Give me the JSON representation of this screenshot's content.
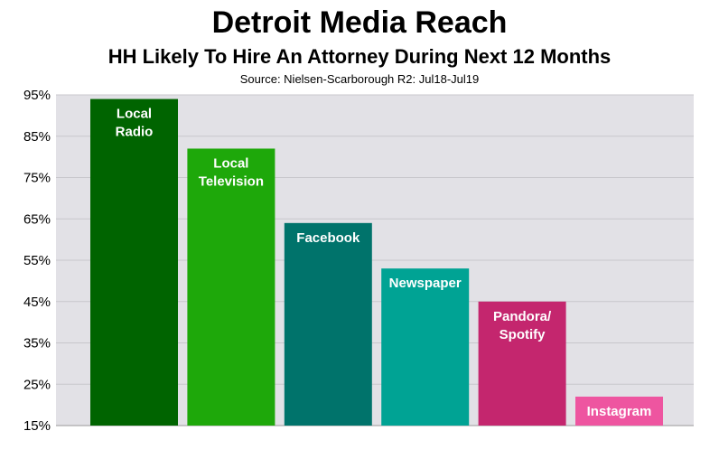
{
  "chart_data": {
    "type": "bar",
    "title": "Detroit Media Reach",
    "subtitle": "HH Likely To Hire An Attorney During Next 12 Months",
    "source": "Source: Nielsen-Scarborough R2: Jul18-Jul19",
    "xlabel": "",
    "ylabel": "",
    "ylim": [
      15,
      95
    ],
    "yticks": [
      "95%",
      "85%",
      "75%",
      "65%",
      "55%",
      "45%",
      "35%",
      "25%",
      "15%"
    ],
    "ytick_values": [
      95,
      85,
      75,
      65,
      55,
      45,
      35,
      25,
      15
    ],
    "grid": true,
    "legend": "none",
    "plot_bg": "#e2e1e6",
    "grid_color": "#c8c7cc",
    "bars": [
      {
        "label_lines": [
          "Local",
          "Radio"
        ],
        "value": 94,
        "color": "#006400"
      },
      {
        "label_lines": [
          "Local",
          "Television"
        ],
        "value": 82,
        "color": "#1ea80a"
      },
      {
        "label_lines": [
          "Facebook"
        ],
        "value": 64,
        "color": "#00736b"
      },
      {
        "label_lines": [
          "Newspaper"
        ],
        "value": 53,
        "color": "#00a394"
      },
      {
        "label_lines": [
          "Pandora/",
          "Spotify"
        ],
        "value": 45,
        "color": "#c4266e"
      },
      {
        "label_lines": [
          "Instagram"
        ],
        "value": 22,
        "color": "#ee55a0"
      }
    ]
  }
}
